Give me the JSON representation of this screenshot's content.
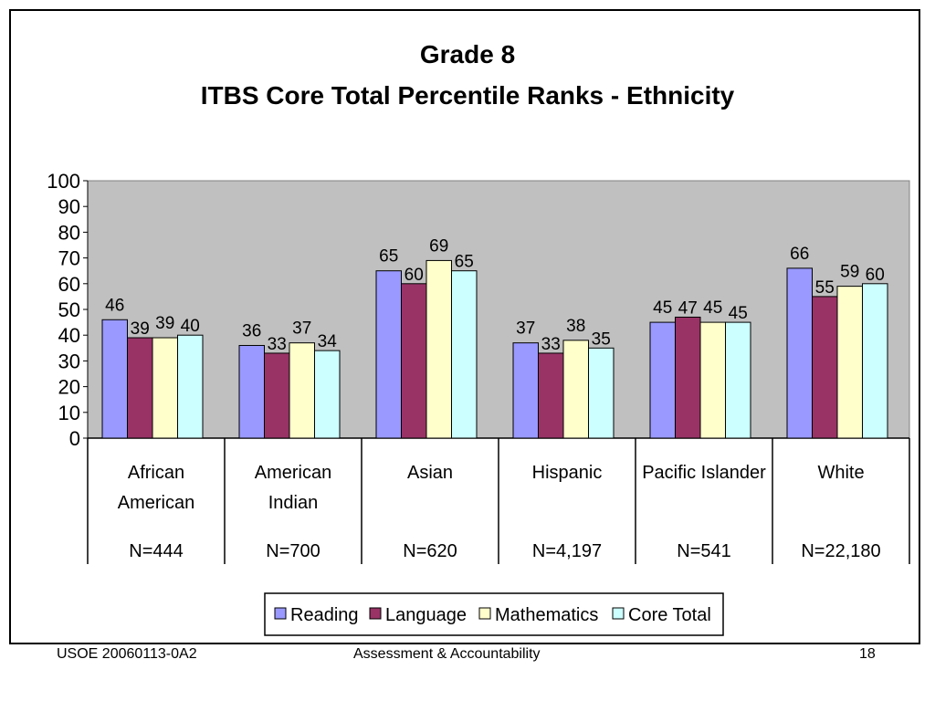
{
  "chart_data": {
    "type": "bar",
    "title": "Grade 8",
    "subtitle": "ITBS Core Total Percentile Ranks - Ethnicity",
    "categories": [
      [
        "African",
        "American"
      ],
      [
        "American",
        "Indian"
      ],
      [
        "Asian"
      ],
      [
        "Hispanic"
      ],
      [
        "Pacific Islander"
      ],
      [
        "White"
      ]
    ],
    "n_labels": [
      "N=444",
      "N=700",
      "N=620",
      "N=4,197",
      "N=541",
      "N=22,180"
    ],
    "series": [
      {
        "name": "Reading",
        "color": "#9999ff",
        "values": [
          46,
          36,
          65,
          37,
          45,
          66
        ]
      },
      {
        "name": "Language",
        "color": "#993366",
        "values": [
          39,
          33,
          60,
          33,
          47,
          55
        ]
      },
      {
        "name": "Mathematics",
        "color": "#ffffcc",
        "values": [
          39,
          37,
          69,
          38,
          45,
          59
        ]
      },
      {
        "name": "Core Total",
        "color": "#ccffff",
        "values": [
          40,
          34,
          65,
          35,
          45,
          60
        ]
      }
    ],
    "ylim": [
      0,
      100
    ],
    "yticks": [
      0,
      10,
      20,
      30,
      40,
      50,
      60,
      70,
      80,
      90,
      100
    ],
    "plot_background": "#c0c0c0",
    "grid": false,
    "legend_position": "bottom"
  },
  "footer": {
    "left": "USOE 20060113-0A2",
    "center": "Assessment & Accountability",
    "right": "18"
  }
}
